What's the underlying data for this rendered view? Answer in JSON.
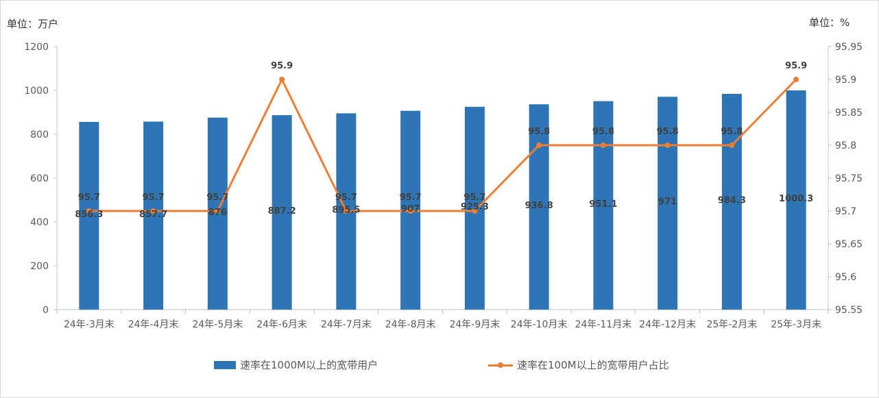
{
  "units": {
    "left": "单位：万户",
    "right": "单位：%"
  },
  "legend": {
    "bars": "速率在1000M以上的宽带用户",
    "line": "速率在100M以上的宽带用户占比"
  },
  "colors": {
    "bar": "#2e75b6",
    "line": "#ed7d31"
  },
  "chart_data": {
    "type": "bar+line",
    "categories": [
      "24年-3月末",
      "24年-4月末",
      "24年-5月末",
      "24年-6月末",
      "24年-7月末",
      "24年-8月末",
      "24年-9月末",
      "24年-10月末",
      "24年-11月末",
      "24年-12月末",
      "25年-2月末",
      "25年-3月末"
    ],
    "series": [
      {
        "name": "速率在1000M以上的宽带用户",
        "type": "bar",
        "axis": "left",
        "values": [
          856.3,
          857.7,
          876,
          887.2,
          895.5,
          907,
          925.3,
          936.8,
          951.1,
          971,
          984.3,
          1000.3
        ]
      },
      {
        "name": "速率在100M以上的宽带用户占比",
        "type": "line",
        "axis": "right",
        "values": [
          95.7,
          95.7,
          95.7,
          95.9,
          95.7,
          95.7,
          95.7,
          95.8,
          95.8,
          95.8,
          95.8,
          95.9
        ]
      }
    ],
    "y_left": {
      "min": 0,
      "max": 1200,
      "ticks": [
        "0",
        "200",
        "400",
        "600",
        "800",
        "1000",
        "1200"
      ]
    },
    "y_right": {
      "min": 95.55,
      "max": 95.95,
      "ticks": [
        "95.55",
        "95.6",
        "95.65",
        "95.7",
        "95.75",
        "95.8",
        "95.85",
        "95.9",
        "95.95"
      ]
    },
    "grid": false,
    "legend_position": "bottom"
  }
}
